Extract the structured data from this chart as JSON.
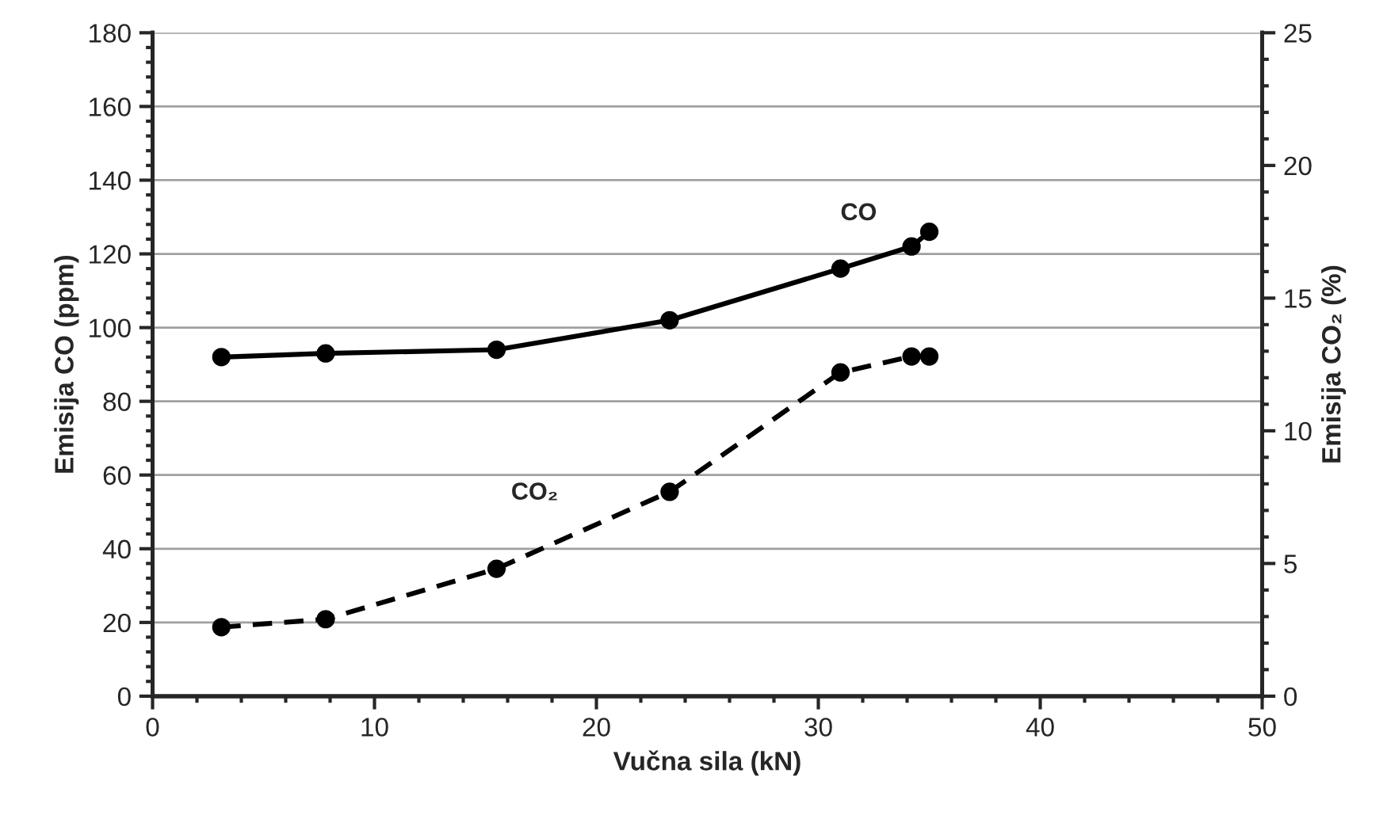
{
  "chart_data": {
    "type": "line",
    "xlabel": "Vučna sila (kN)",
    "ylabel": "Emisija CO (ppm)",
    "y2label": "Emisija CO₂ (%)",
    "xlim": [
      0,
      50
    ],
    "xticks": [
      0,
      10,
      20,
      30,
      40,
      50
    ],
    "ylim": [
      0,
      180
    ],
    "yticks": [
      0,
      20,
      40,
      60,
      80,
      100,
      120,
      140,
      160,
      180
    ],
    "y2lim": [
      0,
      25
    ],
    "y2ticks": [
      0,
      5,
      10,
      15,
      20,
      25
    ],
    "grid": "y",
    "legend": false,
    "marker": "circle",
    "series": [
      {
        "name": "CO",
        "color": "#000000",
        "line_style": "solid",
        "x": [
          3.1,
          7.8,
          15.5,
          23.3,
          31.0,
          34.2,
          35.0
        ],
        "values": [
          92,
          93,
          94,
          102,
          116,
          122,
          126
        ]
      },
      {
        "name": "CO₂",
        "color": "#000000",
        "line_style": "dashed",
        "axis": "y2",
        "x": [
          3.1,
          7.8,
          15.5,
          23.3,
          31.0,
          34.2,
          35.0
        ],
        "values": [
          2.6,
          2.9,
          4.8,
          7.7,
          12.2,
          12.8,
          12.8
        ]
      }
    ]
  }
}
